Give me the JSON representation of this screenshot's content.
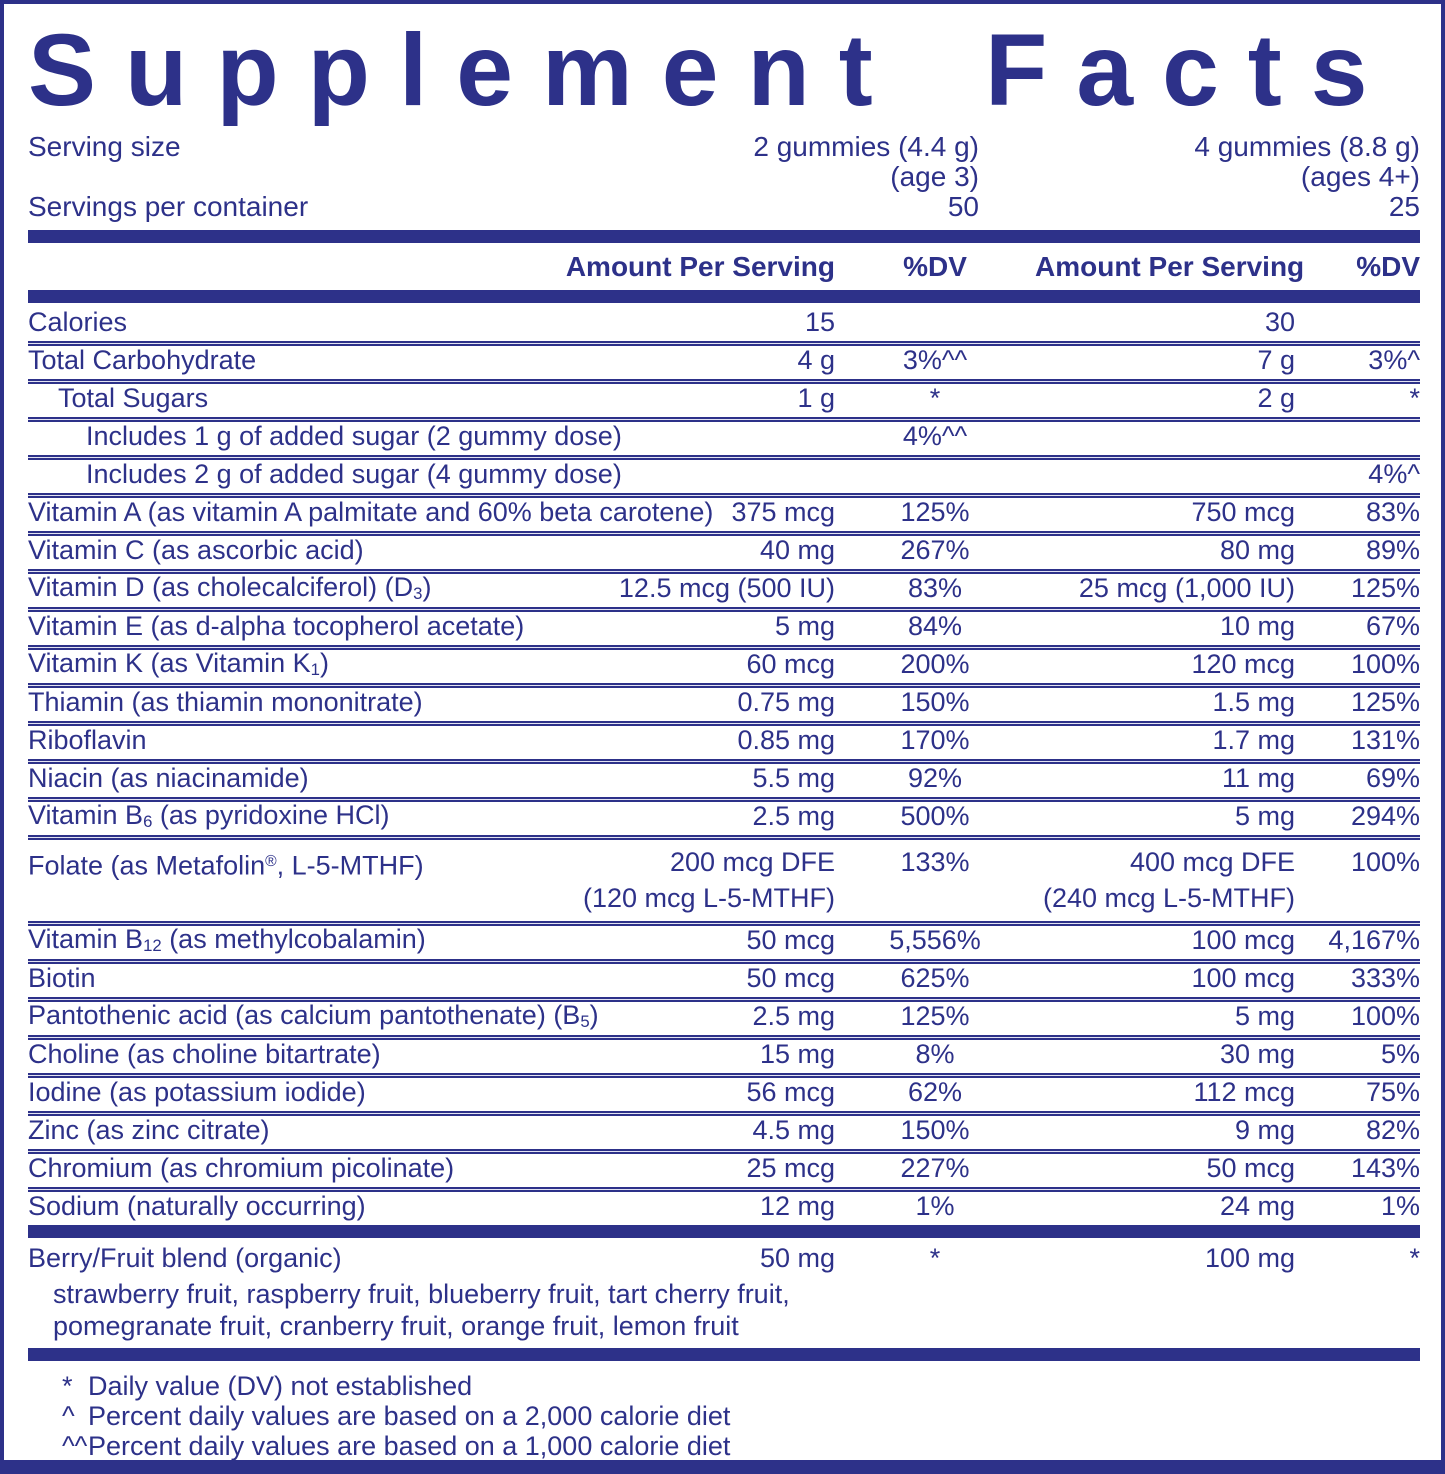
{
  "colors": {
    "navy": "#2d3189"
  },
  "label": {
    "title": "Supplement Facts",
    "serving": {
      "size_label": "Serving size",
      "servings_label": "Servings per container",
      "dose1": {
        "size": "2 gummies (4.4 g)",
        "age": "(age 3)",
        "servings": "50"
      },
      "dose2": {
        "size": "4 gummies (8.8 g)",
        "age": "(ages 4+)",
        "servings": "25"
      }
    },
    "headers": {
      "amount1": "Amount Per Serving",
      "dv1": "%DV",
      "amount2": "Amount Per Serving",
      "dv2": "%DV"
    },
    "rows": [
      {
        "name": "Calories",
        "a1": "15",
        "dv1": "",
        "a2": "30",
        "dv2": ""
      },
      {
        "name": "Total Carbohydrate",
        "a1": "4 g",
        "dv1": "3%^^",
        "a2": "7 g",
        "dv2": "3%^"
      },
      {
        "name": "Total Sugars",
        "a1": "1 g",
        "dv1": "*",
        "a2": "2 g",
        "dv2": "*"
      },
      {
        "name": "Includes 1 g of added sugar (2 gummy dose)",
        "a1": "",
        "dv1": "4%^^",
        "a2": "",
        "dv2": ""
      },
      {
        "name": "Includes 2 g of added sugar (4 gummy dose)",
        "a1": "",
        "dv1": "",
        "a2": "",
        "dv2": "4%^"
      },
      {
        "name": "Vitamin A (as vitamin A palmitate and 60% beta carotene)",
        "a1": "375 mcg",
        "dv1": "125%",
        "a2": "750 mcg",
        "dv2": "83%"
      },
      {
        "name": "Vitamin C (as ascorbic acid)",
        "a1": "40 mg",
        "dv1": "267%",
        "a2": "80 mg",
        "dv2": "89%"
      },
      {
        "name": "Vitamin D (as cholecalciferol) (D_{3})",
        "a1": "12.5 mcg (500 IU)",
        "dv1": "83%",
        "a2": "25 mcg (1,000 IU)",
        "dv2": "125%"
      },
      {
        "name": "Vitamin E (as d-alpha tocopherol acetate)",
        "a1": "5 mg",
        "dv1": "84%",
        "a2": "10 mg",
        "dv2": "67%"
      },
      {
        "name": "Vitamin K (as Vitamin K_{1})",
        "a1": "60 mcg",
        "dv1": "200%",
        "a2": "120 mcg",
        "dv2": "100%"
      },
      {
        "name": "Thiamin (as thiamin mononitrate)",
        "a1": "0.75 mg",
        "dv1": "150%",
        "a2": "1.5 mg",
        "dv2": "125%"
      },
      {
        "name": "Riboflavin",
        "a1": "0.85 mg",
        "dv1": "170%",
        "a2": "1.7 mg",
        "dv2": "131%"
      },
      {
        "name": "Niacin (as niacinamide)",
        "a1": "5.5 mg",
        "dv1": "92%",
        "a2": "11 mg",
        "dv2": "69%"
      },
      {
        "name": "Vitamin B_{6} (as pyridoxine HCl)",
        "a1": "2.5 mg",
        "dv1": "500%",
        "a2": "5 mg",
        "dv2": "294%"
      },
      {
        "name": "Folate (as Metafolin^{®}, L-5-MTHF)",
        "a1": "200 mcg DFE\n(120 mcg L-5-MTHF)",
        "dv1": "133%",
        "a2": "400 mcg DFE\n(240 mcg L-5-MTHF)",
        "dv2": "100%"
      },
      {
        "name": "Vitamin B_{12} (as methylcobalamin)",
        "a1": "50 mcg",
        "dv1": "5,556%",
        "a2": "100 mcg",
        "dv2": "4,167%"
      },
      {
        "name": "Biotin",
        "a1": "50 mcg",
        "dv1": "625%",
        "a2": "100 mcg",
        "dv2": "333%"
      },
      {
        "name": "Pantothenic acid (as calcium pantothenate) (B_{5})",
        "a1": "2.5 mg",
        "dv1": "125%",
        "a2": "5 mg",
        "dv2": "100%"
      },
      {
        "name": "Choline (as choline bitartrate)",
        "a1": "15 mg",
        "dv1": "8%",
        "a2": "30 mg",
        "dv2": "5%"
      },
      {
        "name": "Iodine (as potassium iodide)",
        "a1": "56 mcg",
        "dv1": "62%",
        "a2": "112 mcg",
        "dv2": "75%"
      },
      {
        "name": "Zinc (as zinc citrate)",
        "a1": "4.5 mg",
        "dv1": "150%",
        "a2": "9 mg",
        "dv2": "82%"
      },
      {
        "name": "Chromium (as chromium picolinate)",
        "a1": "25 mcg",
        "dv1": "227%",
        "a2": "50 mcg",
        "dv2": "143%"
      },
      {
        "name": "Sodium (naturally occurring)",
        "a1": "12 mg",
        "dv1": "1%",
        "a2": "24 mg",
        "dv2": "1%"
      }
    ],
    "blend": {
      "name": "Berry/Fruit blend (organic)",
      "a1": "50 mg",
      "dv1": "*",
      "a2": "100 mg",
      "dv2": "*",
      "ingredients": [
        "strawberry fruit, raspberry fruit, blueberry fruit, tart cherry fruit,",
        "pomegranate fruit, cranberry fruit, orange fruit, lemon fruit"
      ]
    },
    "footnotes": [
      {
        "marker": "*",
        "text": "Daily value (DV) not established"
      },
      {
        "marker": "^",
        "text": "Percent daily values are based on a 2,000 calorie diet"
      },
      {
        "marker": "^^",
        "text": "Percent daily values are based on a 1,000 calorie diet"
      }
    ]
  }
}
